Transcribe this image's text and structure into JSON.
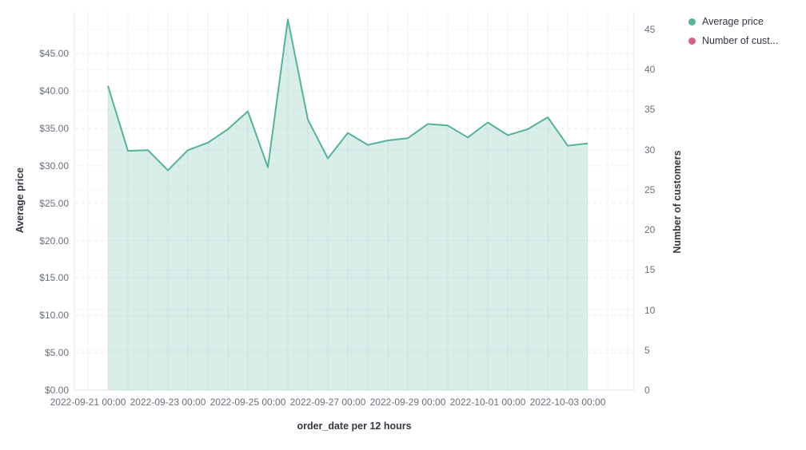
{
  "chart": {
    "x_axis_title": "order_date per 12 hours",
    "y_left_title": "Average price",
    "y_right_title": "Number of customers"
  },
  "legend": {
    "position": "top-right",
    "items": [
      {
        "label": "Average price",
        "color": "#54b399"
      },
      {
        "label": "Number of cust...",
        "color": "#d36086"
      }
    ]
  },
  "chart_data": {
    "type": "area",
    "title": "",
    "xlabel": "order_date per 12 hours",
    "ylabel_left": "Average price",
    "ylabel_right": "Number of customers",
    "x_interval": "12 hours",
    "x_tick_labels": [
      "2022-09-21 00:00",
      "2022-09-23 00:00",
      "2022-09-25 00:00",
      "2022-09-27 00:00",
      "2022-09-29 00:00",
      "2022-10-01 00:00",
      "2022-10-03 00:00"
    ],
    "y_left_tick_labels": [
      "$0.00",
      "$5.00",
      "$10.00",
      "$15.00",
      "$20.00",
      "$25.00",
      "$30.00",
      "$35.00",
      "$40.00",
      "$45.00"
    ],
    "y_left_tick_values": [
      0,
      5,
      10,
      15,
      20,
      25,
      30,
      35,
      40,
      45
    ],
    "y_right_tick_labels": [
      "0",
      "5",
      "10",
      "15",
      "20",
      "25",
      "30",
      "35",
      "40",
      "45"
    ],
    "y_right_tick_values": [
      0,
      5,
      10,
      15,
      20,
      25,
      30,
      35,
      40,
      45
    ],
    "ylim_left": [
      0,
      50.5
    ],
    "ylim_right": [
      0,
      48.5
    ],
    "grid": true,
    "legend_position": "right",
    "series": [
      {
        "name": "Average price",
        "color": "#54b399",
        "style": "area",
        "x": [
          "2022-09-21 12:00",
          "2022-09-22 00:00",
          "2022-09-22 12:00",
          "2022-09-23 00:00",
          "2022-09-23 12:00",
          "2022-09-24 00:00",
          "2022-09-24 12:00",
          "2022-09-25 00:00",
          "2022-09-25 12:00",
          "2022-09-26 00:00",
          "2022-09-26 12:00",
          "2022-09-27 00:00",
          "2022-09-27 12:00",
          "2022-09-28 00:00",
          "2022-09-28 12:00",
          "2022-09-29 00:00",
          "2022-09-29 12:00",
          "2022-09-30 00:00",
          "2022-09-30 12:00",
          "2022-10-01 00:00",
          "2022-10-01 12:00",
          "2022-10-02 00:00",
          "2022-10-02 12:00",
          "2022-10-03 00:00",
          "2022-10-03 12:00"
        ],
        "values": [
          40.7,
          32.0,
          32.1,
          29.4,
          32.1,
          33.1,
          34.9,
          37.3,
          29.8,
          49.6,
          36.2,
          31.0,
          34.4,
          32.8,
          33.4,
          33.7,
          35.6,
          35.4,
          33.8,
          35.8,
          34.1,
          34.9,
          36.5,
          32.7,
          33.0
        ]
      },
      {
        "name": "Number of cust...",
        "color": "#d36086",
        "style": "line",
        "values": []
      }
    ]
  }
}
